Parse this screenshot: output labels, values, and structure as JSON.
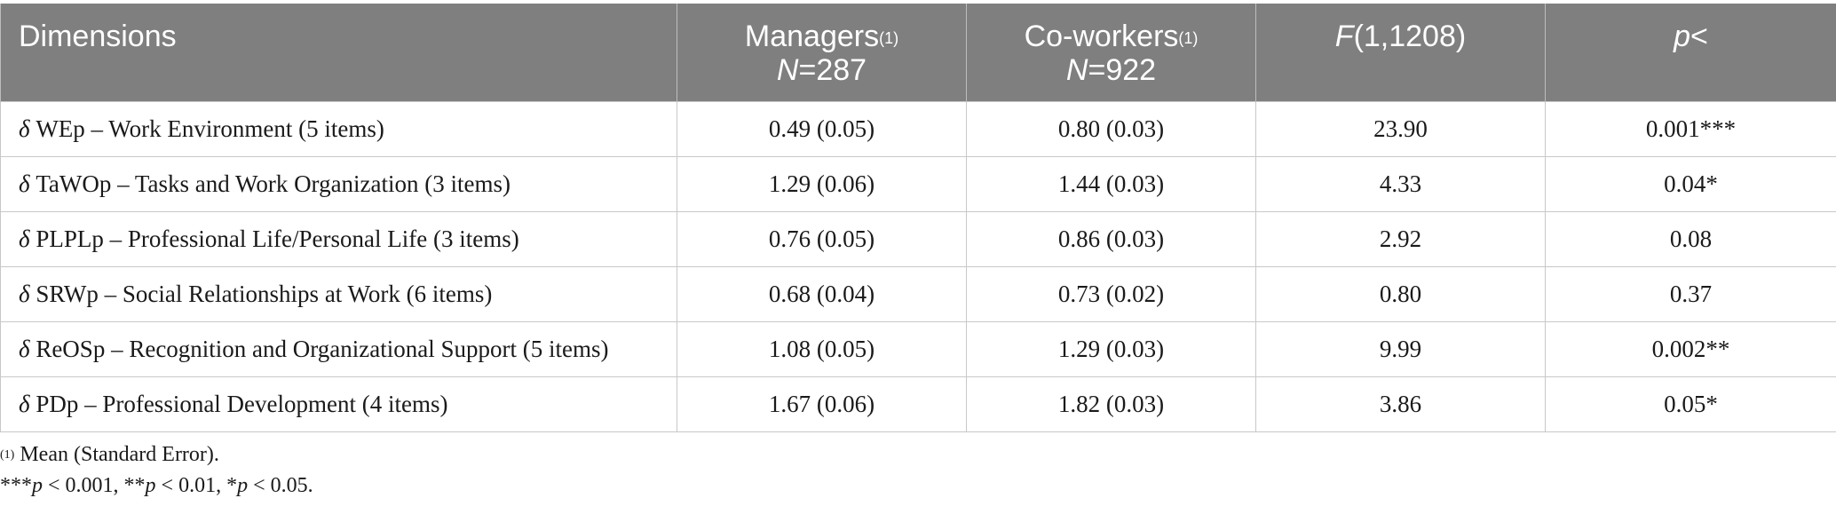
{
  "table": {
    "headers": [
      {
        "label": "Dimensions"
      },
      {
        "label": "Managers",
        "sup": "(1)",
        "n_label": "N",
        "n_value": "=287"
      },
      {
        "label": "Co-workers",
        "sup": "(1)",
        "n_label": "N",
        "n_value": "=922"
      },
      {
        "label_italic": "F",
        "label_rest": "(1,1208)"
      },
      {
        "label_italic": "p",
        "label_rest": "<"
      }
    ],
    "rows": [
      {
        "delta": "δ",
        "dimension": " WEp – Work Environment (5 items)",
        "managers": "0.49 (0.05)",
        "coworkers": "0.80 (0.03)",
        "f": "23.90",
        "p": "0.001***"
      },
      {
        "delta": "δ",
        "dimension": " TaWOp – Tasks and Work Organization (3 items)",
        "managers": "1.29 (0.06)",
        "coworkers": "1.44 (0.03)",
        "f": "4.33",
        "p": "0.04*"
      },
      {
        "delta": "δ",
        "dimension": " PLPLp – Professional Life/Personal Life (3 items)",
        "managers": "0.76 (0.05)",
        "coworkers": "0.86 (0.03)",
        "f": "2.92",
        "p": "0.08"
      },
      {
        "delta": "δ",
        "dimension": " SRWp – Social Relationships at Work (6 items)",
        "managers": "0.68 (0.04)",
        "coworkers": "0.73 (0.02)",
        "f": "0.80",
        "p": "0.37"
      },
      {
        "delta": "δ",
        "dimension": " ReOSp – Recognition and Organizational Support (5 items)",
        "managers": "1.08 (0.05)",
        "coworkers": "1.29 (0.03)",
        "f": "9.99",
        "p": "0.002**"
      },
      {
        "delta": "δ",
        "dimension": " PDp – Professional Development (4 items)",
        "managers": "1.67 (0.06)",
        "coworkers": "1.82 (0.03)",
        "f": "3.86",
        "p": "0.05*"
      }
    ]
  },
  "notes": {
    "note1_sup": "(1)",
    "note1_text": " Mean (Standard Error).",
    "note2_parts": [
      "***",
      "p",
      " < 0.001, **",
      "p",
      " < 0.01, *",
      "p",
      " < 0.05."
    ]
  }
}
